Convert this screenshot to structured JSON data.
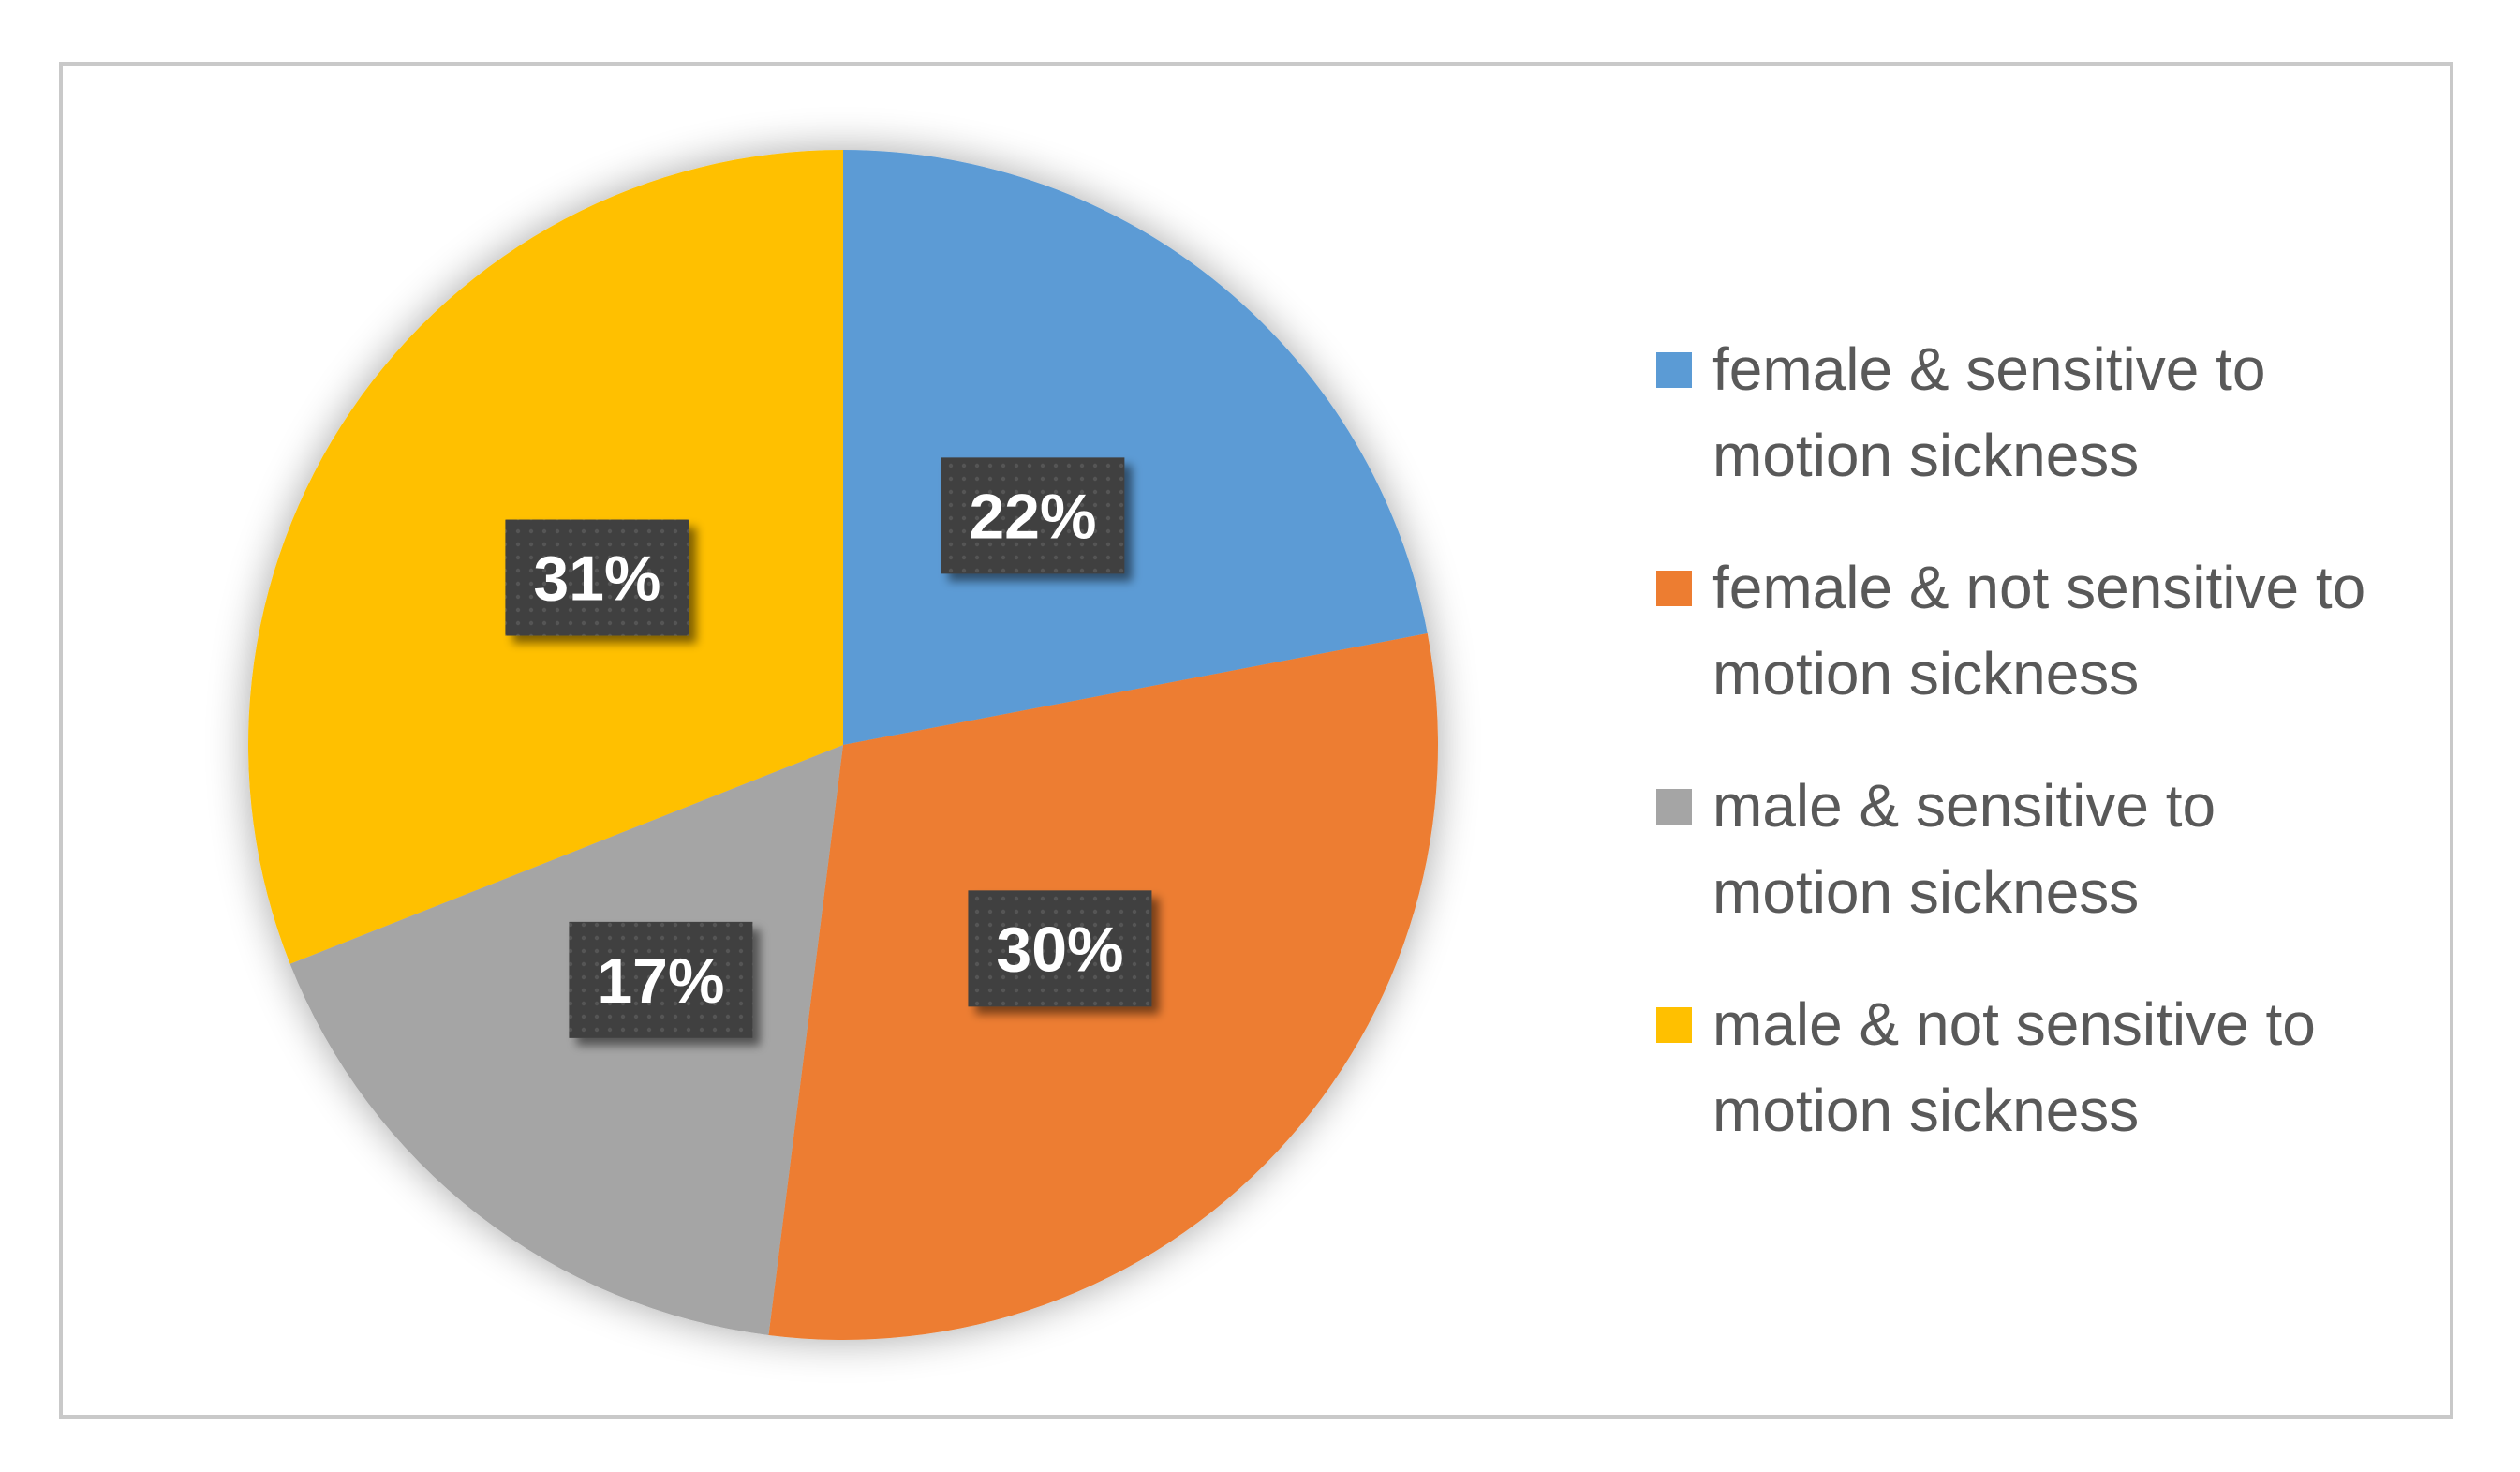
{
  "chart_data": {
    "type": "pie",
    "categories": [
      "female & sensitive to motion sickness",
      "female & not sensitive to motion sickness",
      "male & sensitive to motion sickness",
      "male & not sensitive to motion sickness"
    ],
    "values": [
      22,
      30,
      17,
      31
    ],
    "data_labels": [
      "22%",
      "30%",
      "17%",
      "31%"
    ],
    "colors": [
      "#5B9BD5",
      "#ED7D31",
      "#A5A5A5",
      "#FFC000"
    ],
    "legend_position": "right",
    "start_angle": "12 o'clock",
    "direction": "clockwise"
  }
}
